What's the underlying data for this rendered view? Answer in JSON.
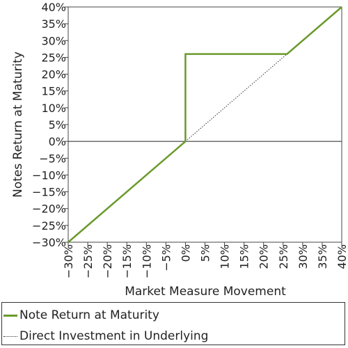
{
  "chart_data": {
    "type": "line",
    "xlabel": "Market Measure Movement",
    "ylabel": "Notes Return at Maturity",
    "xlim": [
      -30,
      40
    ],
    "ylim": [
      -30,
      40
    ],
    "x_ticks": [
      "−30%",
      "−25%",
      "−20%",
      "−15%",
      "−10%",
      "−5%",
      "0%",
      "5%",
      "10%",
      "15%",
      "20%",
      "25%",
      "30%",
      "35%",
      "40%"
    ],
    "y_ticks": [
      "−30%",
      "−25%",
      "−20%",
      "−15%",
      "−10%",
      "−5%",
      "0%",
      "5%",
      "10%",
      "15%",
      "20%",
      "25%",
      "30%",
      "35%",
      "40%"
    ],
    "series": [
      {
        "name": "Note Return at Maturity",
        "color": "#6a9a2c",
        "style": "solid",
        "points": [
          [
            -30,
            -30
          ],
          [
            0,
            0
          ],
          [
            0,
            26
          ],
          [
            26,
            26
          ],
          [
            40,
            40
          ]
        ]
      },
      {
        "name": "Direct Investment in Underlying",
        "color": "#333333",
        "style": "dotted",
        "points": [
          [
            0,
            0
          ],
          [
            26,
            26
          ]
        ]
      }
    ],
    "zero_line": true,
    "legend_position": "bottom"
  }
}
